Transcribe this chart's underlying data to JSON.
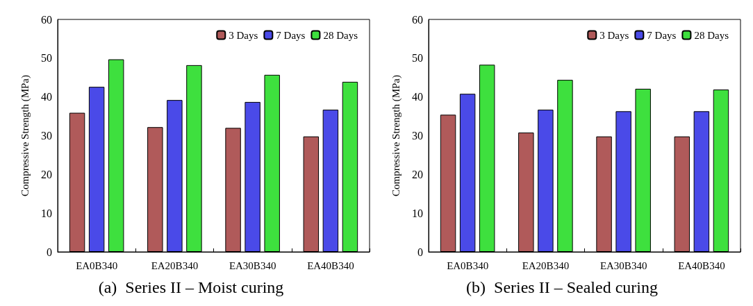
{
  "chart_data": [
    {
      "type": "bar",
      "title": "(a)  Series II – Moist curing",
      "ylabel": "Compressive Strength (MPa)",
      "categories": [
        "EA0B340",
        "EA20B340",
        "EA30B340",
        "EA40B340"
      ],
      "series": [
        {
          "name": "3 Days",
          "color": "#b05a5a",
          "values": [
            35.9,
            32.2,
            32.0,
            29.8
          ]
        },
        {
          "name": "7 Days",
          "color": "#4a4ae8",
          "values": [
            42.6,
            39.2,
            38.7,
            36.7
          ]
        },
        {
          "name": "28 Days",
          "color": "#3ee03e",
          "values": [
            49.7,
            48.2,
            45.7,
            43.9
          ]
        }
      ],
      "ylim": [
        0,
        60
      ],
      "yticks": [
        0,
        10,
        20,
        30,
        40,
        50,
        60
      ],
      "grid": false,
      "legend": "top right"
    },
    {
      "type": "bar",
      "title": "(b)  Series II – Sealed curing",
      "ylabel": "Compressive Strength (MPa)",
      "categories": [
        "EA0B340",
        "EA20B340",
        "EA30B340",
        "EA40B340"
      ],
      "series": [
        {
          "name": "3 Days",
          "color": "#b05a5a",
          "values": [
            35.4,
            30.8,
            29.8,
            29.8
          ]
        },
        {
          "name": "7 Days",
          "color": "#4a4ae8",
          "values": [
            40.8,
            36.7,
            36.3,
            36.3
          ]
        },
        {
          "name": "28 Days",
          "color": "#3ee03e",
          "values": [
            48.3,
            44.4,
            42.1,
            41.9
          ]
        }
      ],
      "ylim": [
        0,
        60
      ],
      "yticks": [
        0,
        10,
        20,
        30,
        40,
        50,
        60
      ],
      "grid": false,
      "legend": "top right"
    }
  ]
}
